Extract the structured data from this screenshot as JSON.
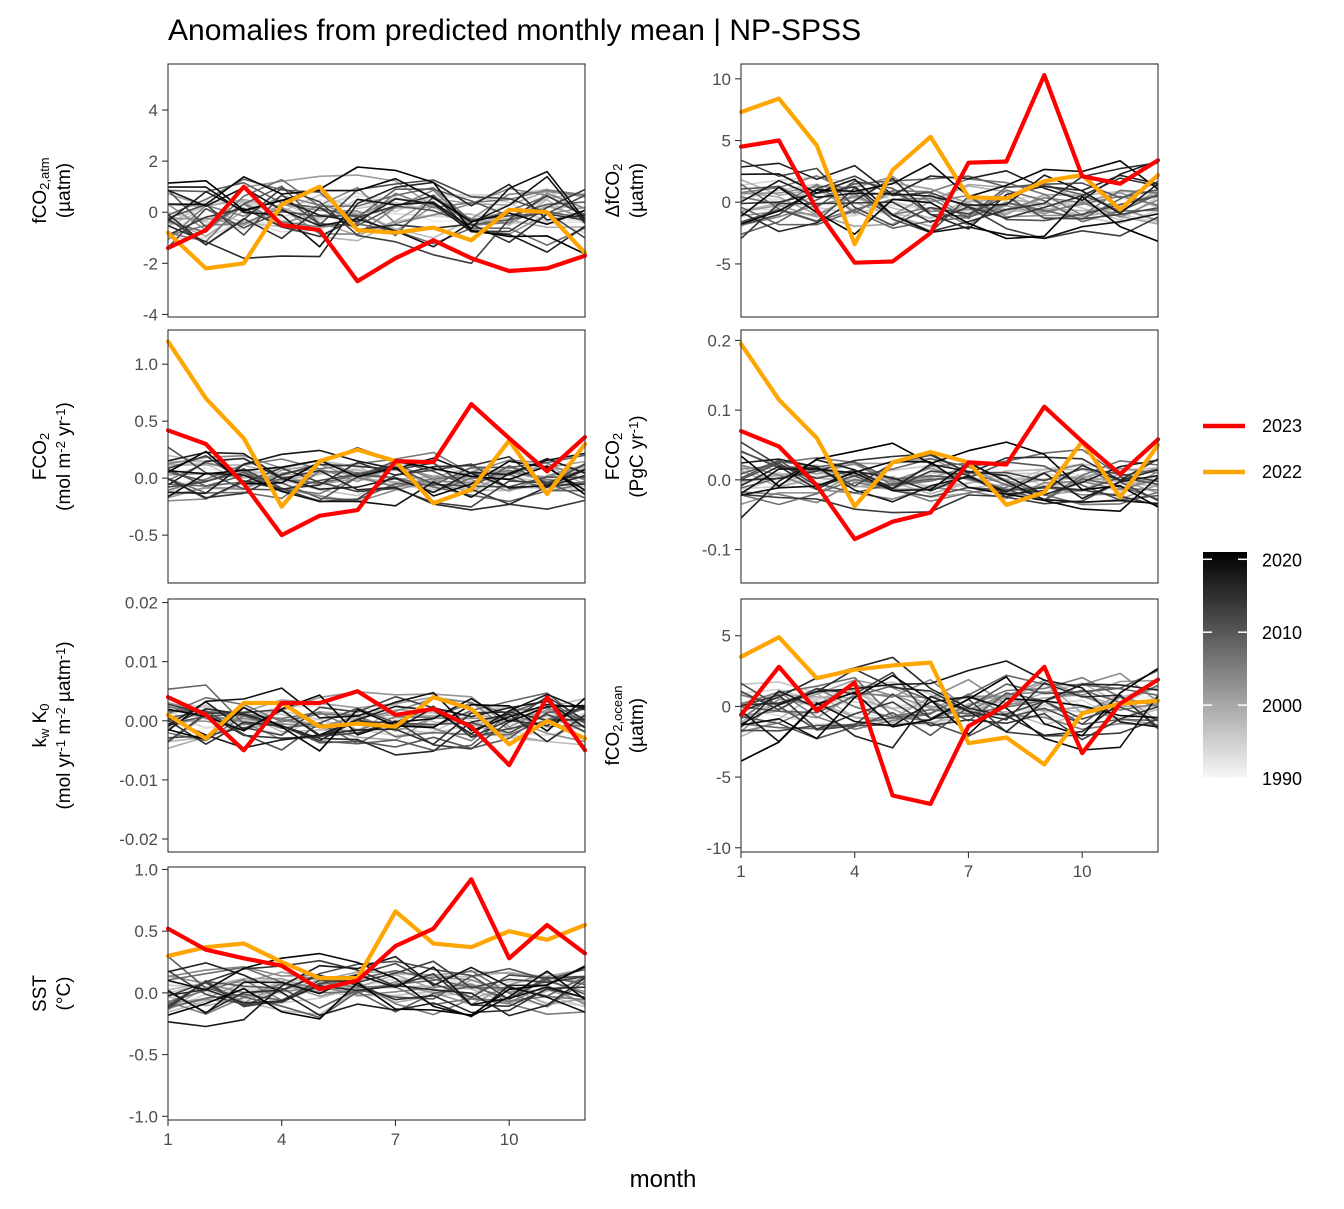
{
  "title": "Anomalies from predicted monthly mean | NP-SPSS",
  "x_axis_title": "month",
  "x_ticks": [
    "1",
    "4",
    "7",
    "10"
  ],
  "legend": {
    "series": [
      {
        "name": "2023",
        "color": "#ff0000"
      },
      {
        "name": "2022",
        "color": "#ffa500"
      }
    ],
    "colorbar": {
      "ticks": [
        "2020",
        "2010",
        "2000",
        "1990"
      ],
      "range": [
        1990,
        2021
      ],
      "low_color": "#f5f5f5",
      "high_color": "#000000"
    }
  },
  "chart_data": [
    {
      "type": "line",
      "panel": "fco2-atm",
      "ylabel_lines": [
        "fCO<sub>2,atm</sub>",
        "(µatm)"
      ],
      "x": [
        1,
        2,
        3,
        4,
        5,
        6,
        7,
        8,
        9,
        10,
        11,
        12
      ],
      "ylim": [
        -4.1,
        5.8
      ],
      "yticks": [
        4,
        2,
        0,
        -2,
        -4
      ],
      "ytick_labels": [
        "4",
        "2",
        "0",
        "-2",
        "-4"
      ],
      "spread": 2.0,
      "series": [
        {
          "name": "2023",
          "values": [
            -1.4,
            -0.7,
            1.0,
            -0.5,
            -0.7,
            -2.7,
            -1.8,
            -1.1,
            -1.8,
            -2.3,
            -2.2,
            -1.7
          ]
        },
        {
          "name": "2022",
          "values": [
            -0.8,
            -2.2,
            -2.0,
            0.3,
            1.0,
            -0.7,
            -0.8,
            -0.6,
            -1.1,
            0.1,
            0.0,
            -1.6
          ]
        }
      ]
    },
    {
      "type": "line",
      "panel": "delta-fco2",
      "ylabel_lines": [
        "ΔfCO<sub>2</sub>",
        "(µatm)"
      ],
      "x": [
        1,
        2,
        3,
        4,
        5,
        6,
        7,
        8,
        9,
        10,
        11,
        12
      ],
      "ylim": [
        -9.3,
        11.2
      ],
      "yticks": [
        10,
        5,
        0,
        -5
      ],
      "ytick_labels": [
        "10",
        "5",
        "0",
        "-5"
      ],
      "spread": 3.5,
      "series": [
        {
          "name": "2023",
          "values": [
            4.5,
            5.0,
            -0.6,
            -4.9,
            -4.8,
            -2.5,
            3.2,
            3.3,
            10.3,
            2.1,
            1.5,
            3.4
          ]
        },
        {
          "name": "2022",
          "values": [
            7.3,
            8.4,
            4.6,
            -3.4,
            2.6,
            5.3,
            0.4,
            0.3,
            1.7,
            2.2,
            -0.6,
            2.2
          ]
        }
      ]
    },
    {
      "type": "line",
      "panel": "fco2-flux-area",
      "ylabel_lines": [
        "FCO<sub>2</sub>",
        "(mol m<sup>-2</sup> yr<sup>-1</sup>)"
      ],
      "x": [
        1,
        2,
        3,
        4,
        5,
        6,
        7,
        8,
        9,
        10,
        11,
        12
      ],
      "ylim": [
        -0.92,
        1.3
      ],
      "yticks": [
        1.0,
        0.5,
        0.0,
        -0.5
      ],
      "ytick_labels": [
        "1.0",
        "0.5",
        "0.0",
        "-0.5"
      ],
      "spread": 0.3,
      "series": [
        {
          "name": "2023",
          "values": [
            0.42,
            0.3,
            -0.05,
            -0.5,
            -0.33,
            -0.28,
            0.15,
            0.14,
            0.65,
            0.35,
            0.06,
            0.36
          ]
        },
        {
          "name": "2022",
          "values": [
            1.2,
            0.7,
            0.35,
            -0.25,
            0.15,
            0.25,
            0.15,
            -0.22,
            -0.1,
            0.33,
            -0.14,
            0.3
          ]
        }
      ]
    },
    {
      "type": "line",
      "panel": "fco2-flux-total",
      "ylabel_lines": [
        "FCO<sub>2</sub>",
        "(PgC yr<sup>-1</sup>)"
      ],
      "x": [
        1,
        2,
        3,
        4,
        5,
        6,
        7,
        8,
        9,
        10,
        11,
        12
      ],
      "ylim": [
        -0.148,
        0.215
      ],
      "yticks": [
        0.2,
        0.1,
        0.0,
        -0.1
      ],
      "ytick_labels": [
        "0.2",
        "0.1",
        "0.0",
        "-0.1"
      ],
      "spread": 0.05,
      "series": [
        {
          "name": "2023",
          "values": [
            0.07,
            0.048,
            -0.008,
            -0.085,
            -0.06,
            -0.047,
            0.025,
            0.022,
            0.105,
            0.055,
            0.008,
            0.058
          ]
        },
        {
          "name": "2022",
          "values": [
            0.195,
            0.115,
            0.06,
            -0.038,
            0.025,
            0.04,
            0.025,
            -0.036,
            -0.018,
            0.055,
            -0.025,
            0.05
          ]
        }
      ]
    },
    {
      "type": "line",
      "panel": "kw-k0",
      "ylabel_lines": [
        "k<sub>w</sub> K<sub>0</sub>",
        "(mol yr<sup>-1</sup> m<sup>-2</sup> µatm<sup>-1</sup>)"
      ],
      "x": [
        1,
        2,
        3,
        4,
        5,
        6,
        7,
        8,
        9,
        10,
        11,
        12
      ],
      "ylim": [
        -0.0222,
        0.0206
      ],
      "yticks": [
        0.02,
        0.01,
        0.0,
        -0.01,
        -0.02
      ],
      "ytick_labels": [
        "0.02",
        "0.01",
        "0.00",
        "-0.01",
        "-0.02"
      ],
      "spread": 0.007,
      "series": [
        {
          "name": "2023",
          "values": [
            0.004,
            0.001,
            -0.005,
            0.003,
            0.003,
            0.005,
            0.001,
            0.002,
            -0.001,
            -0.0075,
            0.004,
            -0.005
          ]
        },
        {
          "name": "2022",
          "values": [
            0.001,
            -0.003,
            0.003,
            0.003,
            -0.001,
            -0.0005,
            -0.001,
            0.004,
            0.002,
            -0.004,
            0.0,
            -0.003
          ]
        }
      ]
    },
    {
      "type": "line",
      "panel": "fco2-ocean",
      "ylabel_lines": [
        "fCO<sub>2,ocean</sub>",
        "(µatm)"
      ],
      "x": [
        1,
        2,
        3,
        4,
        5,
        6,
        7,
        8,
        9,
        10,
        11,
        12
      ],
      "ylim": [
        -10.3,
        7.6
      ],
      "yticks": [
        5,
        0,
        -5,
        -10
      ],
      "ytick_labels": [
        "5",
        "0",
        "-5",
        "-10"
      ],
      "spread": 3.5,
      "series": [
        {
          "name": "2023",
          "values": [
            -0.6,
            2.8,
            -0.3,
            1.7,
            -6.3,
            -6.9,
            -1.4,
            0.1,
            2.8,
            -3.3,
            0.2,
            1.9
          ]
        },
        {
          "name": "2022",
          "values": [
            3.5,
            4.9,
            2.0,
            2.6,
            2.9,
            3.1,
            -2.6,
            -2.2,
            -4.1,
            -0.5,
            0.2,
            0.4
          ]
        }
      ]
    },
    {
      "type": "line",
      "panel": "sst",
      "ylabel_lines": [
        "SST",
        "(°C)"
      ],
      "x": [
        1,
        2,
        3,
        4,
        5,
        6,
        7,
        8,
        9,
        10,
        11,
        12
      ],
      "ylim": [
        -1.03,
        1.02
      ],
      "yticks": [
        1.0,
        0.5,
        0.0,
        -0.5,
        -1.0
      ],
      "ytick_labels": [
        "1.0",
        "0.5",
        "0.0",
        "-0.5",
        "-1.0"
      ],
      "spread": 0.3,
      "series": [
        {
          "name": "2023",
          "values": [
            0.52,
            0.35,
            0.28,
            0.22,
            0.03,
            0.1,
            0.38,
            0.52,
            0.92,
            0.28,
            0.55,
            0.32
          ]
        },
        {
          "name": "2022",
          "values": [
            0.3,
            0.37,
            0.4,
            0.25,
            0.12,
            0.12,
            0.66,
            0.4,
            0.37,
            0.5,
            0.43,
            0.55
          ]
        }
      ]
    }
  ]
}
